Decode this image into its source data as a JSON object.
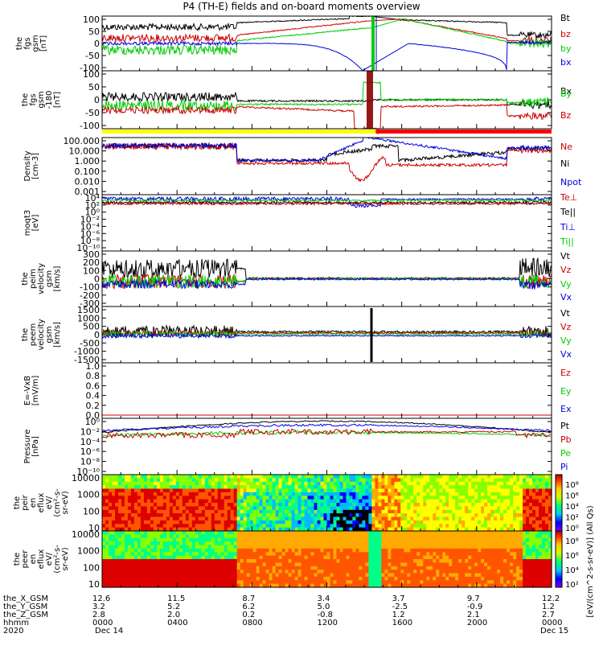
{
  "chart_data": [
    {
      "type": "line",
      "panel": "the_fgs_gsm",
      "ylabel": [
        "the",
        "fgs",
        "gsm",
        "[nT]"
      ],
      "yticks": [
        "100",
        "50",
        "0",
        "-50",
        "-100"
      ],
      "ylim": [
        -100,
        100
      ],
      "series": [
        {
          "name": "Bt",
          "color": "#000000"
        },
        {
          "name": "bz",
          "color": "#cc0000"
        },
        {
          "name": "by",
          "color": "#00cc00"
        },
        {
          "name": "bx",
          "color": "#0000dd"
        }
      ]
    },
    {
      "type": "line",
      "panel": "the_fgs_gse",
      "ylabel": [
        "the",
        "fgs",
        "gsm",
        "-180",
        "[nT]"
      ],
      "yticks": [
        "100",
        "50",
        "0",
        "-50",
        "-100"
      ],
      "ylim": [
        -120,
        100
      ],
      "series": [
        {
          "name": "Bx",
          "color": "#000000"
        },
        {
          "name": "By",
          "color": "#00cc00"
        },
        {
          "name": "Bz",
          "color": "#cc0000"
        }
      ]
    },
    {
      "type": "line",
      "panel": "density",
      "scale": "log",
      "ylabel": [
        "Density",
        "[cm-3]"
      ],
      "yticks": [
        "100.000",
        "10.000",
        "1.000",
        "0.100",
        "0.010",
        "0.001"
      ],
      "series": [
        {
          "name": "Ne",
          "color": "#cc0000"
        },
        {
          "name": "Ni",
          "color": "#000000"
        },
        {
          "name": "Npot",
          "color": "#0000dd"
        }
      ]
    },
    {
      "type": "line",
      "panel": "moqt3",
      "scale": "log",
      "ylabel": [
        "moqt3",
        "[eV]"
      ],
      "yticks": [
        "10⁴",
        "10²",
        "10⁰",
        "10⁻²",
        "10⁻⁴",
        "10⁻⁶",
        "10⁻⁸",
        "10⁻¹⁰"
      ],
      "series": [
        {
          "name": "Te⊥",
          "color": "#cc0000"
        },
        {
          "name": "Te||",
          "color": "#000000"
        },
        {
          "name": "Ti⊥",
          "color": "#0000dd"
        },
        {
          "name": "Ti||",
          "color": "#00cc00"
        }
      ]
    },
    {
      "type": "line",
      "panel": "the_peim_velocity",
      "ylabel": [
        "the",
        "peim",
        "velocity",
        "gsm",
        "[km/s]"
      ],
      "yticks": [
        "300",
        "200",
        "100",
        "0",
        "-100",
        "-200",
        "-300"
      ],
      "ylim": [
        -300,
        300
      ],
      "series": [
        {
          "name": "Vt",
          "color": "#000000"
        },
        {
          "name": "Vz",
          "color": "#cc0000"
        },
        {
          "name": "Vy",
          "color": "#00cc00"
        },
        {
          "name": "Vx",
          "color": "#0000dd"
        }
      ]
    },
    {
      "type": "line",
      "panel": "the_peem_velocity",
      "ylabel": [
        "the",
        "peem",
        "velocity",
        "gsm",
        "[km/s]"
      ],
      "yticks": [
        "1500",
        "1000",
        "500",
        "0",
        "-500",
        "-1000",
        "-1500"
      ],
      "ylim": [
        -1500,
        1500
      ],
      "series": [
        {
          "name": "Vt",
          "color": "#000000"
        },
        {
          "name": "Vz",
          "color": "#cc0000"
        },
        {
          "name": "Vy",
          "color": "#00cc00"
        },
        {
          "name": "Vx",
          "color": "#0000dd"
        }
      ]
    },
    {
      "type": "line",
      "panel": "efield",
      "ylabel": [
        "E=-VxB",
        "[mV/m]"
      ],
      "yticks": [
        "1.0",
        "0.8",
        "0.6",
        "0.4",
        "0.2",
        "0.0"
      ],
      "ylim": [
        0,
        1
      ],
      "series": [
        {
          "name": "Ez",
          "color": "#cc0000"
        },
        {
          "name": "Ey",
          "color": "#00cc00"
        },
        {
          "name": "Ex",
          "color": "#0000dd"
        }
      ]
    },
    {
      "type": "line",
      "panel": "pressure",
      "scale": "log",
      "ylabel": [
        "Pressure",
        "[nPa]"
      ],
      "yticks": [
        "10⁰",
        "10⁻²",
        "10⁻⁴",
        "10⁻⁶",
        "10⁻⁸",
        "10⁻¹⁰"
      ],
      "series": [
        {
          "name": "Pt",
          "color": "#000000"
        },
        {
          "name": "Pb",
          "color": "#cc0000"
        },
        {
          "name": "Pe",
          "color": "#00cc00"
        },
        {
          "name": "Pi",
          "color": "#0000dd"
        }
      ]
    },
    {
      "type": "heatmap",
      "panel": "the_peir_en_eflux",
      "ylabel": [
        "the",
        "peir",
        "en",
        "eflux",
        "eV/",
        "(cm²-s-",
        "sr-eV)"
      ],
      "yticks": [
        "10000",
        "1000",
        "100",
        "10"
      ]
    },
    {
      "type": "heatmap",
      "panel": "the_peer_en_eflux",
      "ylabel": [
        "the",
        "peer",
        "en",
        "eflux",
        "eV/",
        "(cm²-s-",
        "sr-eV)"
      ],
      "yticks": [
        "10000",
        "1000",
        "100",
        "10"
      ]
    }
  ],
  "title": "P4 (TH-E) fields and on-board moments overview",
  "colorbar": {
    "label": "[eV/(cm^2-s-sr-eV)] (All Qs)",
    "ticks_top": [
      "10⁸",
      "10⁶",
      "10⁴",
      "10²",
      "10⁰"
    ],
    "ticks_bottom": [
      "10⁸",
      "10⁶",
      "10⁴",
      "10²"
    ]
  },
  "ephemeris": {
    "rows": [
      {
        "label": "the_X_GSM",
        "values": [
          "12.6",
          "11.5",
          "8.7",
          "3.4",
          "3.7",
          "9.7",
          "12.2"
        ]
      },
      {
        "label": "the_Y_GSM",
        "values": [
          "3.2",
          "5.2",
          "6.2",
          "5.0",
          "-2.5",
          "-0.9",
          "1.2"
        ]
      },
      {
        "label": "the_Z_GSM",
        "values": [
          "2.8",
          "2.0",
          "0.2",
          "-0.8",
          "1.2",
          "2.1",
          "2.7"
        ]
      },
      {
        "label": "hhmm",
        "values": [
          "0000",
          "0400",
          "0800",
          "1200",
          "1600",
          "2000",
          "0000"
        ]
      }
    ],
    "year": "2020",
    "date_start": "Dec 14",
    "date_end": "Dec 15"
  },
  "colors": {
    "bar_yellow": "#ffff00",
    "bar_red": "#ff0000"
  }
}
